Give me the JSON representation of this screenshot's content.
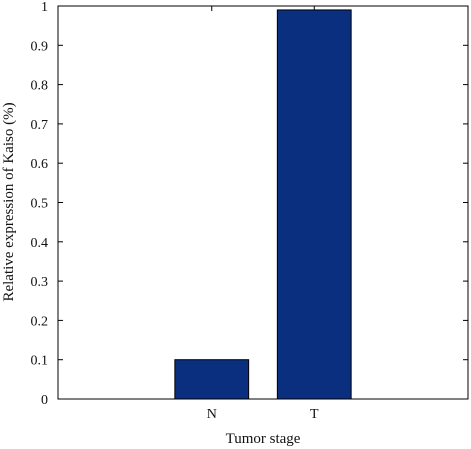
{
  "chart_data": {
    "type": "bar",
    "title": "",
    "xlabel": "Tumor stage",
    "ylabel": "Relative expression of Kaiso (%)",
    "categories": [
      "N",
      "T"
    ],
    "values": [
      0.1,
      0.99
    ],
    "ylim": [
      0,
      1
    ],
    "yticks": [
      "0",
      "0.1",
      "0.2",
      "0.3",
      "0.4",
      "0.5",
      "0.6",
      "0.7",
      "0.8",
      "0.9",
      "1"
    ],
    "grid": false,
    "legend": "none",
    "bar_color": "#0a2f7e"
  }
}
